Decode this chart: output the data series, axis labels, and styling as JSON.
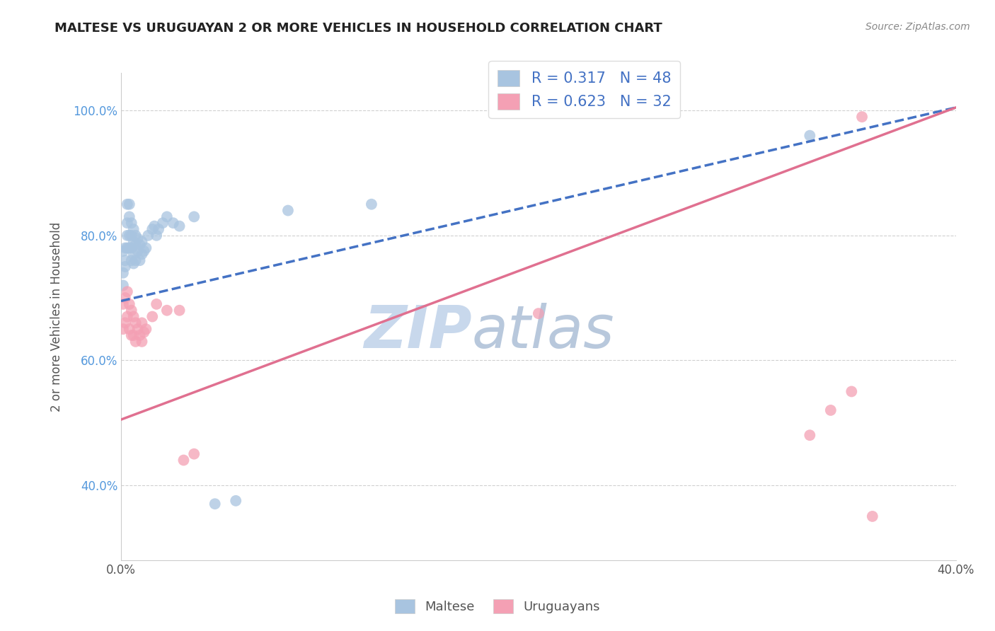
{
  "title": "MALTESE VS URUGUAYAN 2 OR MORE VEHICLES IN HOUSEHOLD CORRELATION CHART",
  "source_text": "Source: ZipAtlas.com",
  "ylabel": "2 or more Vehicles in Household",
  "xlim": [
    0.0,
    0.4
  ],
  "ylim": [
    0.28,
    1.06
  ],
  "y_ticks": [
    0.4,
    0.6,
    0.8,
    1.0
  ],
  "y_tick_labels": [
    "40.0%",
    "60.0%",
    "80.0%",
    "100.0%"
  ],
  "x_ticks": [
    0.0,
    0.1,
    0.2,
    0.3,
    0.4
  ],
  "x_tick_labels": [
    "0.0%",
    "",
    "",
    "",
    "40.0%"
  ],
  "maltese_R": 0.317,
  "maltese_N": 48,
  "uruguayan_R": 0.623,
  "uruguayan_N": 32,
  "maltese_color": "#a8c4e0",
  "uruguayan_color": "#f4a0b4",
  "maltese_line_color": "#4472c4",
  "uruguayan_line_color": "#e07090",
  "watermark_zip": "ZIP",
  "watermark_atlas": "atlas",
  "watermark_color_zip": "#c8d8ec",
  "watermark_color_atlas": "#b8c8dc",
  "legend_label_maltese": "Maltese",
  "legend_label_uruguayan": "Uruguayans",
  "maltese_line_x0": 0.0,
  "maltese_line_y0": 0.695,
  "maltese_line_x1": 0.4,
  "maltese_line_y1": 1.005,
  "uruguayan_line_x0": 0.0,
  "uruguayan_line_y0": 0.505,
  "uruguayan_line_x1": 0.4,
  "uruguayan_line_y1": 1.005,
  "maltese_x": [
    0.001,
    0.001,
    0.001,
    0.002,
    0.002,
    0.002,
    0.003,
    0.003,
    0.003,
    0.003,
    0.004,
    0.004,
    0.004,
    0.004,
    0.005,
    0.005,
    0.005,
    0.005,
    0.006,
    0.006,
    0.006,
    0.006,
    0.007,
    0.007,
    0.007,
    0.008,
    0.008,
    0.009,
    0.009,
    0.01,
    0.01,
    0.011,
    0.012,
    0.013,
    0.015,
    0.016,
    0.017,
    0.018,
    0.02,
    0.022,
    0.025,
    0.028,
    0.035,
    0.045,
    0.055,
    0.08,
    0.12,
    0.33
  ],
  "maltese_y": [
    0.775,
    0.74,
    0.72,
    0.76,
    0.78,
    0.75,
    0.85,
    0.82,
    0.8,
    0.78,
    0.85,
    0.83,
    0.8,
    0.78,
    0.82,
    0.8,
    0.78,
    0.76,
    0.81,
    0.79,
    0.77,
    0.755,
    0.8,
    0.785,
    0.76,
    0.795,
    0.775,
    0.785,
    0.76,
    0.79,
    0.77,
    0.775,
    0.78,
    0.8,
    0.81,
    0.815,
    0.8,
    0.81,
    0.82,
    0.83,
    0.82,
    0.815,
    0.83,
    0.37,
    0.375,
    0.84,
    0.85,
    0.96
  ],
  "uruguayan_x": [
    0.001,
    0.001,
    0.002,
    0.002,
    0.003,
    0.003,
    0.004,
    0.004,
    0.005,
    0.005,
    0.006,
    0.006,
    0.007,
    0.007,
    0.008,
    0.009,
    0.01,
    0.01,
    0.011,
    0.012,
    0.015,
    0.017,
    0.022,
    0.028,
    0.03,
    0.035,
    0.2,
    0.33,
    0.34,
    0.35,
    0.355,
    0.36
  ],
  "uruguayan_y": [
    0.69,
    0.65,
    0.7,
    0.66,
    0.71,
    0.67,
    0.69,
    0.65,
    0.68,
    0.64,
    0.67,
    0.64,
    0.66,
    0.63,
    0.65,
    0.64,
    0.66,
    0.63,
    0.645,
    0.65,
    0.67,
    0.69,
    0.68,
    0.68,
    0.44,
    0.45,
    0.675,
    0.48,
    0.52,
    0.55,
    0.99,
    0.35
  ]
}
